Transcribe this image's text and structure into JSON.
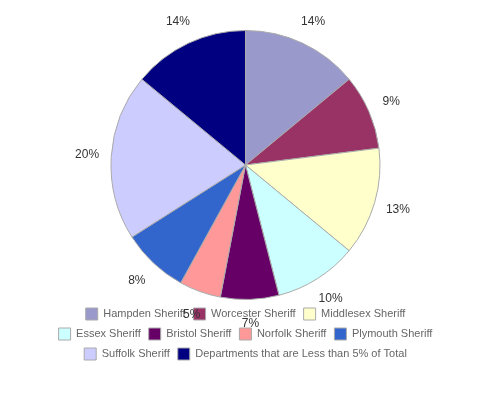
{
  "chart_data": {
    "type": "pie",
    "categories": [
      "Hampden Sheriff",
      "Worcester Sheriff",
      "Middlesex Sheriff",
      "Essex Sheriff",
      "Bristol Sheriff",
      "Norfolk Sheriff",
      "Plymouth Sheriff",
      "Suffolk Sheriff",
      "Departments that are Less than 5% of Total"
    ],
    "values": [
      14,
      9,
      13,
      10,
      7,
      5,
      8,
      20,
      14
    ],
    "value_labels": [
      "14%",
      "9%",
      "13%",
      "10%",
      "7%",
      "5%",
      "8%",
      "20%",
      "14%"
    ],
    "colors": [
      "#9999CC",
      "#993366",
      "#FFFFCC",
      "#CCFFFF",
      "#660066",
      "#FF9999",
      "#3366CC",
      "#CCCCFF",
      "#000080"
    ],
    "data_labels": true,
    "legend": "bottom"
  }
}
